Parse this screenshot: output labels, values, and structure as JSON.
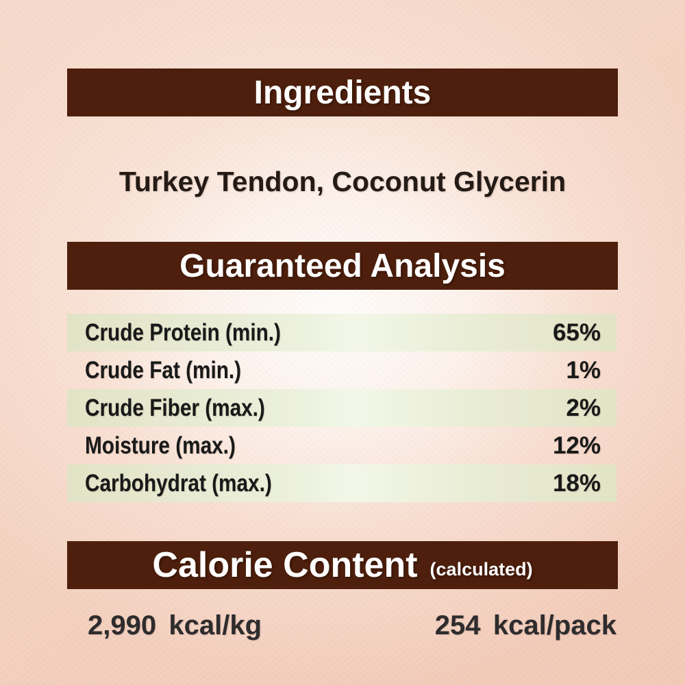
{
  "ingredients": {
    "header": "Ingredients",
    "content": "Turkey Tendon, Coconut Glycerin"
  },
  "guaranteed_analysis": {
    "header": "Guaranteed Analysis",
    "rows": [
      {
        "label": "Crude Protein (min.)",
        "value": "65%"
      },
      {
        "label": "Crude Fat (min.)",
        "value": "1%"
      },
      {
        "label": "Crude Fiber (max.)",
        "value": "2%"
      },
      {
        "label": "Moisture (max.)",
        "value": "12%"
      },
      {
        "label": "Carbohydrat (max.)",
        "value": "18%"
      }
    ]
  },
  "calorie_content": {
    "header": "Calorie Content",
    "header_suffix": "(calculated)",
    "per_kg": "2,990 kcal/kg",
    "per_pack": "254 kcal/pack"
  },
  "colors": {
    "header_bar_brown": "#4d1f0c",
    "header_text_white": "#ffffff",
    "row_stripe_green": "#e2e3c6",
    "background_peach": "#f4d0bf",
    "body_text_dark": "#191919"
  }
}
